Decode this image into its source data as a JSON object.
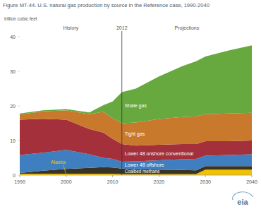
{
  "chart_data": {
    "type": "area",
    "stacked": true,
    "title": "Figure MT-44. U.S. natural gas production by source in the Reference case, 1990-2040",
    "y_label": "trillion cubic feet",
    "annotations": [
      "History",
      "Projections"
    ],
    "divider": 2012,
    "source": "eia",
    "x": [
      1990,
      1995,
      2000,
      2005,
      2008,
      2010,
      2012,
      2015,
      2020,
      2025,
      2028,
      2030,
      2035,
      2040
    ],
    "series": [
      {
        "name": "Alaska",
        "color": "#f2c200",
        "values": [
          0.4,
          0.4,
          0.4,
          0.4,
          0.4,
          0.4,
          0.3,
          0.3,
          0.3,
          0.3,
          0.3,
          1.6,
          1.6,
          1.6
        ]
      },
      {
        "name": "Coalbed methane",
        "color": "#3b3322",
        "values": [
          0.2,
          0.9,
          1.4,
          1.7,
          1.9,
          1.8,
          1.6,
          1.4,
          1.3,
          1.2,
          1.1,
          1.0,
          1.0,
          1.0
        ]
      },
      {
        "name": "Lower 48 offshore",
        "color": "#3f7fc0",
        "values": [
          5.2,
          5.2,
          5.5,
          3.9,
          2.7,
          2.5,
          2.0,
          2.3,
          2.7,
          3.1,
          3.3,
          3.0,
          3.2,
          3.4
        ]
      },
      {
        "name": "Lower 48 onshore conventional",
        "color": "#a3303b",
        "values": [
          10.2,
          9.8,
          8.7,
          7.3,
          7.3,
          5.8,
          5.1,
          4.5,
          4.5,
          4.4,
          4.3,
          4.2,
          4.0,
          4.0
        ]
      },
      {
        "name": "Tight gas",
        "color": "#c9792c",
        "values": [
          1.5,
          2.1,
          2.7,
          4.3,
          6.0,
          6.0,
          6.0,
          6.7,
          7.4,
          7.8,
          8.0,
          7.8,
          8.0,
          8.0
        ]
      },
      {
        "name": "Shale gas",
        "color": "#67a83f",
        "values": [
          0.3,
          0.3,
          0.4,
          0.5,
          1.9,
          4.8,
          9.0,
          9.8,
          12.3,
          14.7,
          15.9,
          16.7,
          18.2,
          19.5
        ]
      }
    ],
    "xlim": [
      1990,
      2040
    ],
    "xticks": [
      1990,
      2000,
      2010,
      2020,
      2030,
      2040
    ],
    "ylim": [
      0,
      40
    ],
    "yticks": [
      0,
      10,
      20,
      30,
      40
    ],
    "grid": false
  }
}
